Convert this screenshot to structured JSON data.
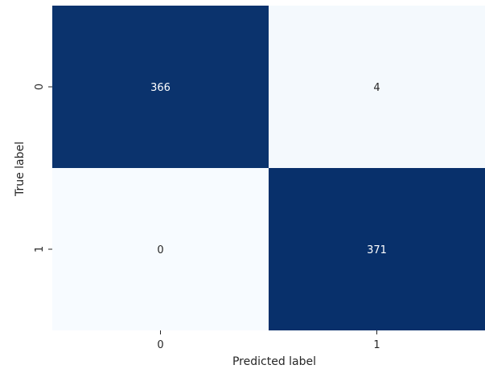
{
  "chart_data": {
    "type": "heatmap",
    "x_categories": [
      "0",
      "1"
    ],
    "y_categories": [
      "0",
      "1"
    ],
    "matrix": [
      [
        366,
        4
      ],
      [
        0,
        371
      ]
    ],
    "xlabel": "Predicted label",
    "ylabel": "True label",
    "colormap": {
      "name": "Blues",
      "low": "#f7fbff",
      "high": "#08306b",
      "text_on_dark": "#ffffff",
      "text_on_light": "#262626"
    },
    "colorbar": false,
    "grid": false,
    "annotations": true
  }
}
